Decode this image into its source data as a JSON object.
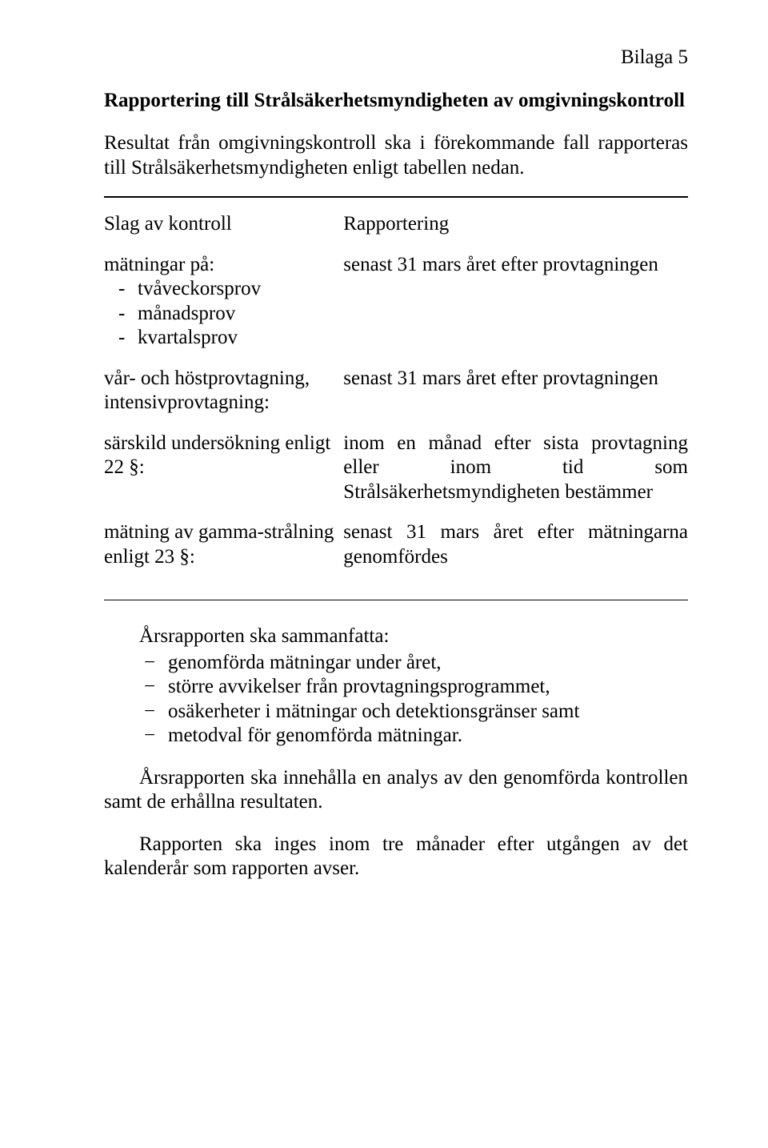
{
  "bilaga": "Bilaga 5",
  "heading": "Rapportering till Strålsäkerhetsmyndigheten av omgivningskontroll",
  "intro": "Resultat från omgivningskontroll ska i förekommande fall rapporteras till Strålsäkerhetsmyndigheten enligt tabellen nedan.",
  "table": {
    "head_left": "Slag av kontroll",
    "head_right": "Rapportering",
    "rows": [
      {
        "left_label": "mätningar på:",
        "left_items": [
          "tvåveckorsprov",
          "månadsprov",
          "kvartalsprov"
        ],
        "right": "senast 31 mars året efter provtagningen"
      },
      {
        "left_label": "vår- och höstprovtagning, intensivprovtagning:",
        "right": "senast 31 mars året efter provtagningen"
      },
      {
        "left_label": "särskild undersökning enligt 22 §:",
        "right": "inom en månad efter sista provtagning eller inom tid som Strålsäkerhetsmyndigheten bestämmer"
      },
      {
        "left_label": "mätning av gamma-strålning enligt 23 §:",
        "right": "senast 31 mars året efter mätningarna genomfördes"
      }
    ]
  },
  "summary": {
    "lead": "Årsrapporten ska sammanfatta:",
    "items": [
      "genomförda mätningar under året,",
      "större avvikelser från provtagningsprogrammet,",
      "osäkerheter i mätningar och detektionsgränser samt",
      "metodval för genomförda mätningar."
    ]
  },
  "para1": "Årsrapporten ska innehålla en analys av den genomförda kontrollen samt de erhållna resultaten.",
  "para2": "Rapporten ska inges inom tre månader efter utgången av det kalenderår som rapporten avser."
}
